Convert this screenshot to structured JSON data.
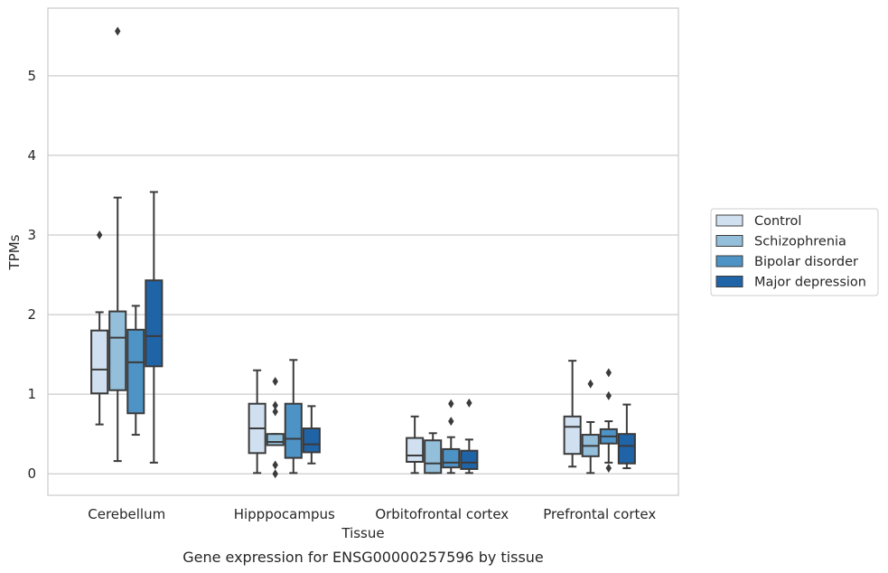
{
  "chart_data": {
    "type": "box",
    "xlabel": "Tissue",
    "ylabel": "TPMs",
    "caption": "Gene expression for ENSG00000257596 by tissue",
    "ylim": [
      -0.27,
      5.85
    ],
    "yticks": [
      0,
      1,
      2,
      3,
      4,
      5
    ],
    "grid": "horizontal",
    "legend_position": "right",
    "categories": [
      "Cerebellum",
      "Hipppocampus",
      "Orbitofrontal cortex",
      "Prefrontal cortex"
    ],
    "series": [
      {
        "name": "Control",
        "color": "#d0e0f0",
        "boxes": [
          {
            "whislo": 0.62,
            "q1": 1.01,
            "med": 1.31,
            "q3": 1.8,
            "whishi": 2.03,
            "fliers": [
              3.0
            ]
          },
          {
            "whislo": 0.01,
            "q1": 0.26,
            "med": 0.57,
            "q3": 0.88,
            "whishi": 1.3,
            "fliers": []
          },
          {
            "whislo": 0.01,
            "q1": 0.15,
            "med": 0.23,
            "q3": 0.45,
            "whishi": 0.72,
            "fliers": []
          },
          {
            "whislo": 0.09,
            "q1": 0.25,
            "med": 0.59,
            "q3": 0.72,
            "whishi": 1.42,
            "fliers": []
          }
        ]
      },
      {
        "name": "Schizophrenia",
        "color": "#93bfdb",
        "boxes": [
          {
            "whislo": 0.16,
            "q1": 1.05,
            "med": 1.71,
            "q3": 2.04,
            "whishi": 3.47,
            "fliers": [
              5.56
            ]
          },
          {
            "whislo": 0.36,
            "q1": 0.36,
            "med": 0.4,
            "q3": 0.5,
            "whishi": 0.5,
            "fliers": [
              1.16,
              0.86,
              0.78,
              0.11,
              0.0
            ]
          },
          {
            "whislo": 0.01,
            "q1": 0.01,
            "med": 0.13,
            "q3": 0.42,
            "whishi": 0.51,
            "fliers": []
          },
          {
            "whislo": 0.01,
            "q1": 0.22,
            "med": 0.35,
            "q3": 0.49,
            "whishi": 0.65,
            "fliers": [
              1.13
            ]
          }
        ]
      },
      {
        "name": "Bipolar disorder",
        "color": "#4e93c6",
        "boxes": [
          {
            "whislo": 0.49,
            "q1": 0.76,
            "med": 1.4,
            "q3": 1.81,
            "whishi": 2.11,
            "fliers": []
          },
          {
            "whislo": 0.01,
            "q1": 0.2,
            "med": 0.44,
            "q3": 0.88,
            "whishi": 1.43,
            "fliers": []
          },
          {
            "whislo": 0.01,
            "q1": 0.08,
            "med": 0.14,
            "q3": 0.31,
            "whishi": 0.46,
            "fliers": [
              0.88,
              0.66
            ]
          },
          {
            "whislo": 0.14,
            "q1": 0.38,
            "med": 0.47,
            "q3": 0.56,
            "whishi": 0.66,
            "fliers": [
              1.27,
              0.98,
              0.07
            ]
          }
        ]
      },
      {
        "name": "Major depression",
        "color": "#2064a8",
        "boxes": [
          {
            "whislo": 0.14,
            "q1": 1.35,
            "med": 1.73,
            "q3": 2.43,
            "whishi": 3.54,
            "fliers": []
          },
          {
            "whislo": 0.13,
            "q1": 0.27,
            "med": 0.37,
            "q3": 0.57,
            "whishi": 0.85,
            "fliers": []
          },
          {
            "whislo": 0.01,
            "q1": 0.06,
            "med": 0.14,
            "q3": 0.29,
            "whishi": 0.43,
            "fliers": [
              0.89
            ]
          },
          {
            "whislo": 0.07,
            "q1": 0.13,
            "med": 0.35,
            "q3": 0.5,
            "whishi": 0.87,
            "fliers": []
          }
        ]
      }
    ]
  }
}
